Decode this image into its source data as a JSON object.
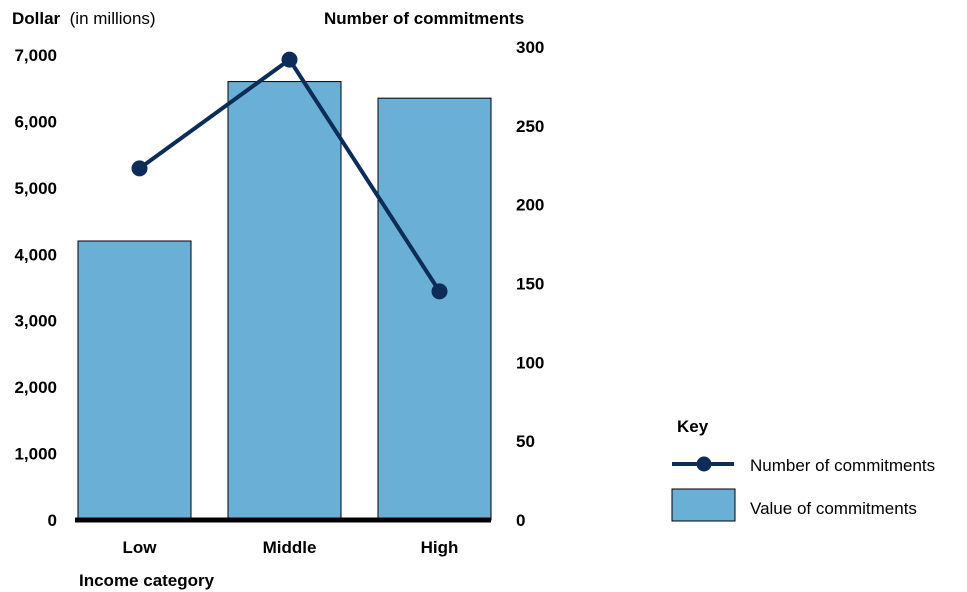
{
  "chart_data": {
    "type": "bar",
    "categories": [
      "Low",
      "Middle",
      "High"
    ],
    "series": [
      {
        "name": "Value of commitments",
        "type": "bar",
        "axis": "left",
        "values": [
          4200,
          6600,
          6350
        ],
        "color": "#6aafd5"
      },
      {
        "name": "Number of commitments",
        "type": "line",
        "axis": "right",
        "values": [
          223,
          292,
          145
        ],
        "color": "#0c2d5a"
      }
    ],
    "left_axis": {
      "title_bold": "Dollar",
      "title_rest": "(in millions)",
      "ylim": [
        0,
        7000
      ],
      "ticks": [
        "0",
        "1,000",
        "2,000",
        "3,000",
        "4,000",
        "5,000",
        "6,000",
        "7,000"
      ],
      "tick_values": [
        0,
        1000,
        2000,
        3000,
        4000,
        5000,
        6000,
        7000
      ]
    },
    "right_axis": {
      "title": "Number of commitments",
      "ylim": [
        0,
        300
      ],
      "ticks": [
        "0",
        "50",
        "100",
        "150",
        "200",
        "250",
        "300"
      ],
      "tick_values": [
        0,
        50,
        100,
        150,
        200,
        250,
        300
      ]
    },
    "xlabel": "Income category",
    "legend": {
      "title": "Key",
      "placement": "right",
      "items": [
        "Number of commitments",
        "Value of commitments"
      ]
    },
    "grid": false
  }
}
